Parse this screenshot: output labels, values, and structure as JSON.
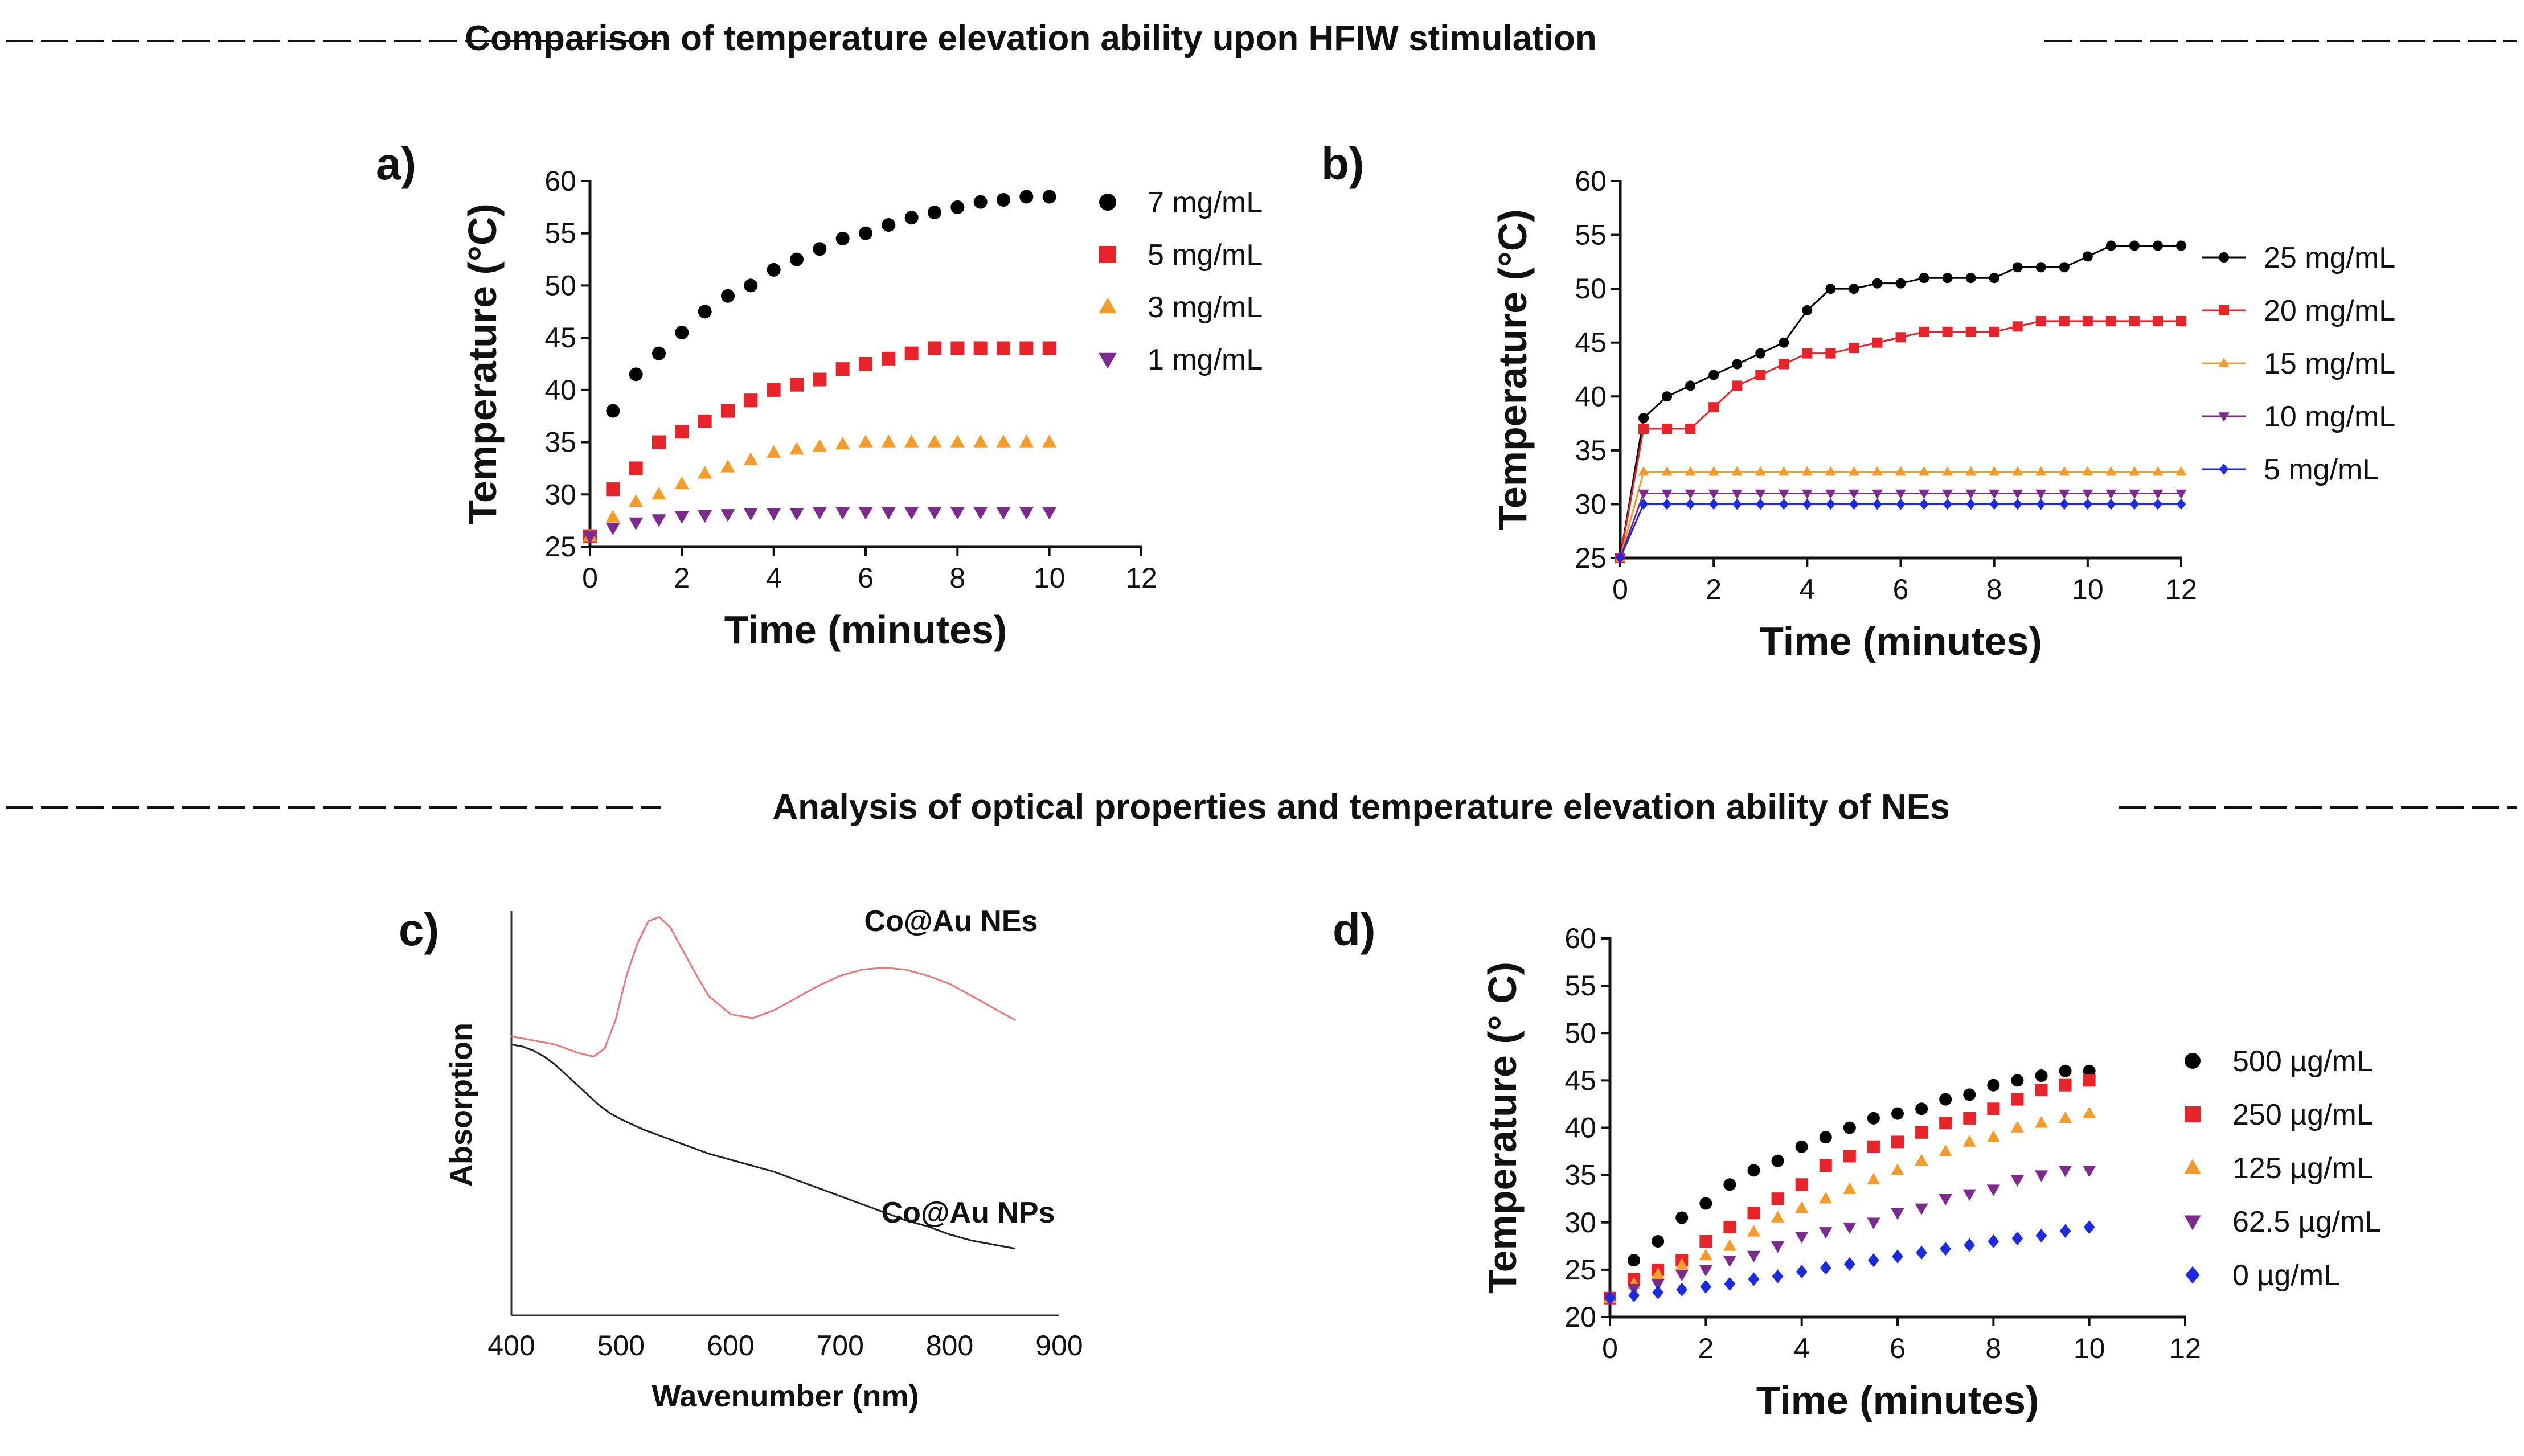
{
  "sections": {
    "top": "Comparison of temperature elevation ability upon HFIW stimulation",
    "bottom": "Analysis of optical properties and temperature elevation ability of NEs"
  },
  "colors": {
    "black": "#000000",
    "red": "#e8242a",
    "orange": "#f39b2b",
    "purple": "#7b2b8c",
    "blue": "#1c2ae0",
    "nes_trace": "#e8797c",
    "nps_trace": "#222222"
  },
  "chart_data": [
    {
      "panel": "a)",
      "type": "scatter",
      "xlabel": "Time (minutes)",
      "ylabel": "Temperature (°C)",
      "xlim": [
        0,
        12
      ],
      "ylim": [
        25,
        60
      ],
      "xticks": [
        "0",
        "2",
        "4",
        "6",
        "8",
        "10",
        "12"
      ],
      "yticks": [
        "25",
        "30",
        "35",
        "40",
        "45",
        "50",
        "55",
        "60"
      ],
      "legend": "right",
      "x": [
        0,
        0.5,
        1,
        1.5,
        2,
        2.5,
        3,
        3.5,
        4,
        4.5,
        5,
        5.5,
        6,
        6.5,
        7,
        7.5,
        8,
        8.5,
        9,
        9.5,
        10
      ],
      "series": [
        {
          "name": "7 mg/mL",
          "marker": "circle",
          "color": "#000000",
          "values": [
            26,
            38,
            41.5,
            43.5,
            45.5,
            47.5,
            49,
            50,
            51.5,
            52.5,
            53.5,
            54.5,
            55,
            55.8,
            56.5,
            57,
            57.5,
            58,
            58.2,
            58.5,
            58.5
          ]
        },
        {
          "name": "5 mg/mL",
          "marker": "square",
          "color": "#e8242a",
          "values": [
            26,
            30.5,
            32.5,
            35,
            36,
            37,
            38,
            39,
            40,
            40.5,
            41,
            42,
            42.5,
            43,
            43.5,
            44,
            44,
            44,
            44,
            44,
            44
          ]
        },
        {
          "name": "3 mg/mL",
          "marker": "triangle-up",
          "color": "#f39b2b",
          "values": [
            26,
            27.8,
            29.3,
            30,
            31,
            32,
            32.6,
            33.3,
            34,
            34.3,
            34.6,
            34.8,
            35,
            35,
            35,
            35,
            35,
            35,
            35,
            35,
            35
          ]
        },
        {
          "name": "1 mg/mL",
          "marker": "triangle-down",
          "color": "#7b2b8c",
          "values": [
            26,
            26.8,
            27.3,
            27.6,
            27.9,
            28,
            28.1,
            28.2,
            28.2,
            28.2,
            28.3,
            28.3,
            28.3,
            28.3,
            28.3,
            28.3,
            28.3,
            28.3,
            28.3,
            28.3,
            28.3
          ]
        }
      ]
    },
    {
      "panel": "b)",
      "type": "line",
      "xlabel": "Time (minutes)",
      "ylabel": "Temperature (°C)",
      "xlim": [
        0,
        12
      ],
      "ylim": [
        25,
        60
      ],
      "xticks": [
        "0",
        "2",
        "4",
        "6",
        "8",
        "10",
        "12"
      ],
      "yticks": [
        "25",
        "30",
        "35",
        "40",
        "45",
        "50",
        "55",
        "60"
      ],
      "legend": "right",
      "x": [
        0,
        0.5,
        1,
        1.5,
        2,
        2.5,
        3,
        3.5,
        4,
        4.5,
        5,
        5.5,
        6,
        6.5,
        7,
        7.5,
        8,
        8.5,
        9,
        9.5,
        10,
        10.5,
        11,
        11.5,
        12
      ],
      "series": [
        {
          "name": "25 mg/mL",
          "marker": "circle",
          "color": "#000000",
          "values": [
            25,
            38,
            40,
            41,
            42,
            43,
            44,
            45,
            48,
            50,
            50,
            50.5,
            50.5,
            51,
            51,
            51,
            51,
            52,
            52,
            52,
            53,
            54,
            54,
            54,
            54
          ]
        },
        {
          "name": "20 mg/mL",
          "marker": "square",
          "color": "#e8242a",
          "values": [
            25,
            37,
            37,
            37,
            39,
            41,
            42,
            43,
            44,
            44,
            44.5,
            45,
            45.5,
            46,
            46,
            46,
            46,
            46.5,
            47,
            47,
            47,
            47,
            47,
            47,
            47
          ]
        },
        {
          "name": "15 mg/mL",
          "marker": "triangle-up",
          "color": "#f39b2b",
          "values": [
            25,
            33,
            33,
            33,
            33,
            33,
            33,
            33,
            33,
            33,
            33,
            33,
            33,
            33,
            33,
            33,
            33,
            33,
            33,
            33,
            33,
            33,
            33,
            33,
            33
          ]
        },
        {
          "name": "10 mg/mL",
          "marker": "triangle-down",
          "color": "#7b2b8c",
          "values": [
            25,
            31,
            31,
            31,
            31,
            31,
            31,
            31,
            31,
            31,
            31,
            31,
            31,
            31,
            31,
            31,
            31,
            31,
            31,
            31,
            31,
            31,
            31,
            31,
            31
          ]
        },
        {
          "name": "5 mg/mL",
          "marker": "diamond",
          "color": "#1c2ae0",
          "values": [
            25,
            30,
            30,
            30,
            30,
            30,
            30,
            30,
            30,
            30,
            30,
            30,
            30,
            30,
            30,
            30,
            30,
            30,
            30,
            30,
            30,
            30,
            30,
            30,
            30
          ]
        }
      ]
    },
    {
      "panel": "c)",
      "type": "line",
      "xlabel": "Wavenumber (nm)",
      "ylabel": "Absorption",
      "xlim": [
        400,
        900
      ],
      "ylim": [
        0,
        1
      ],
      "xticks": [
        "400",
        "500",
        "600",
        "700",
        "800",
        "900"
      ],
      "series": [
        {
          "name": "Co@Au NEs",
          "color": "#e8797c",
          "x": [
            400,
            420,
            440,
            460,
            475,
            485,
            495,
            505,
            515,
            525,
            535,
            545,
            555,
            565,
            580,
            600,
            620,
            640,
            660,
            680,
            700,
            720,
            740,
            760,
            780,
            800,
            820,
            840,
            860
          ],
          "values": [
            0.69,
            0.68,
            0.67,
            0.65,
            0.64,
            0.66,
            0.73,
            0.84,
            0.92,
            0.975,
            0.985,
            0.96,
            0.91,
            0.86,
            0.79,
            0.745,
            0.735,
            0.755,
            0.785,
            0.815,
            0.84,
            0.855,
            0.86,
            0.855,
            0.84,
            0.82,
            0.79,
            0.76,
            0.73
          ]
        },
        {
          "name": "Co@Au NPs",
          "color": "#222222",
          "x": [
            400,
            410,
            420,
            430,
            440,
            450,
            460,
            470,
            480,
            490,
            500,
            520,
            540,
            560,
            580,
            600,
            620,
            640,
            660,
            680,
            700,
            720,
            740,
            760,
            780,
            800,
            820,
            840,
            860
          ],
          "values": [
            0.67,
            0.665,
            0.655,
            0.64,
            0.62,
            0.595,
            0.57,
            0.545,
            0.52,
            0.5,
            0.485,
            0.46,
            0.44,
            0.42,
            0.4,
            0.385,
            0.37,
            0.355,
            0.335,
            0.315,
            0.295,
            0.275,
            0.255,
            0.235,
            0.22,
            0.2,
            0.185,
            0.175,
            0.165
          ]
        }
      ]
    },
    {
      "panel": "d)",
      "type": "scatter",
      "xlabel": "Time (minutes)",
      "ylabel": "Temperature (° C)",
      "xlim": [
        0,
        12
      ],
      "ylim": [
        20,
        60
      ],
      "xticks": [
        "0",
        "2",
        "4",
        "6",
        "8",
        "10",
        "12"
      ],
      "yticks": [
        "20",
        "25",
        "30",
        "35",
        "40",
        "45",
        "50",
        "55",
        "60"
      ],
      "legend": "right",
      "x": [
        0,
        0.5,
        1,
        1.5,
        2,
        2.5,
        3,
        3.5,
        4,
        4.5,
        5,
        5.5,
        6,
        6.5,
        7,
        7.5,
        8,
        8.5,
        9,
        9.5,
        10
      ],
      "series": [
        {
          "name": "500 µg/mL",
          "marker": "circle",
          "color": "#000000",
          "values": [
            22,
            26,
            28,
            30.5,
            32,
            34,
            35.5,
            36.5,
            38,
            39,
            40,
            41,
            41.5,
            42,
            43,
            43.5,
            44.5,
            45,
            45.5,
            46,
            46
          ]
        },
        {
          "name": "250 µg/mL",
          "marker": "square",
          "color": "#e8242a",
          "values": [
            22,
            24,
            25,
            26,
            28,
            29.5,
            31,
            32.5,
            34,
            36,
            37,
            38,
            38.5,
            39.5,
            40.5,
            41,
            42,
            43,
            44,
            44.5,
            45
          ]
        },
        {
          "name": "125 µg/mL",
          "marker": "triangle-up",
          "color": "#f39b2b",
          "values": [
            22,
            23.5,
            24.5,
            25.5,
            26.5,
            27.5,
            29,
            30.5,
            31.5,
            32.5,
            33.5,
            34.5,
            35.5,
            36.5,
            37.5,
            38.5,
            39,
            40,
            40.5,
            41,
            41.5
          ]
        },
        {
          "name": "62.5 µg/mL",
          "marker": "triangle-down",
          "color": "#7b2b8c",
          "values": [
            22,
            23,
            23.5,
            24.5,
            25,
            26,
            26.5,
            27.5,
            28.5,
            29,
            29.5,
            30,
            31,
            31.5,
            32.5,
            33,
            33.5,
            34.5,
            35,
            35.5,
            35.5
          ]
        },
        {
          "name": "0 µg/mL",
          "marker": "diamond",
          "color": "#1c2ae0",
          "values": [
            22,
            22.3,
            22.6,
            22.9,
            23.2,
            23.5,
            24,
            24.3,
            24.8,
            25.2,
            25.6,
            26,
            26.4,
            26.8,
            27.2,
            27.6,
            28,
            28.3,
            28.6,
            29.1,
            29.5
          ]
        }
      ]
    }
  ]
}
